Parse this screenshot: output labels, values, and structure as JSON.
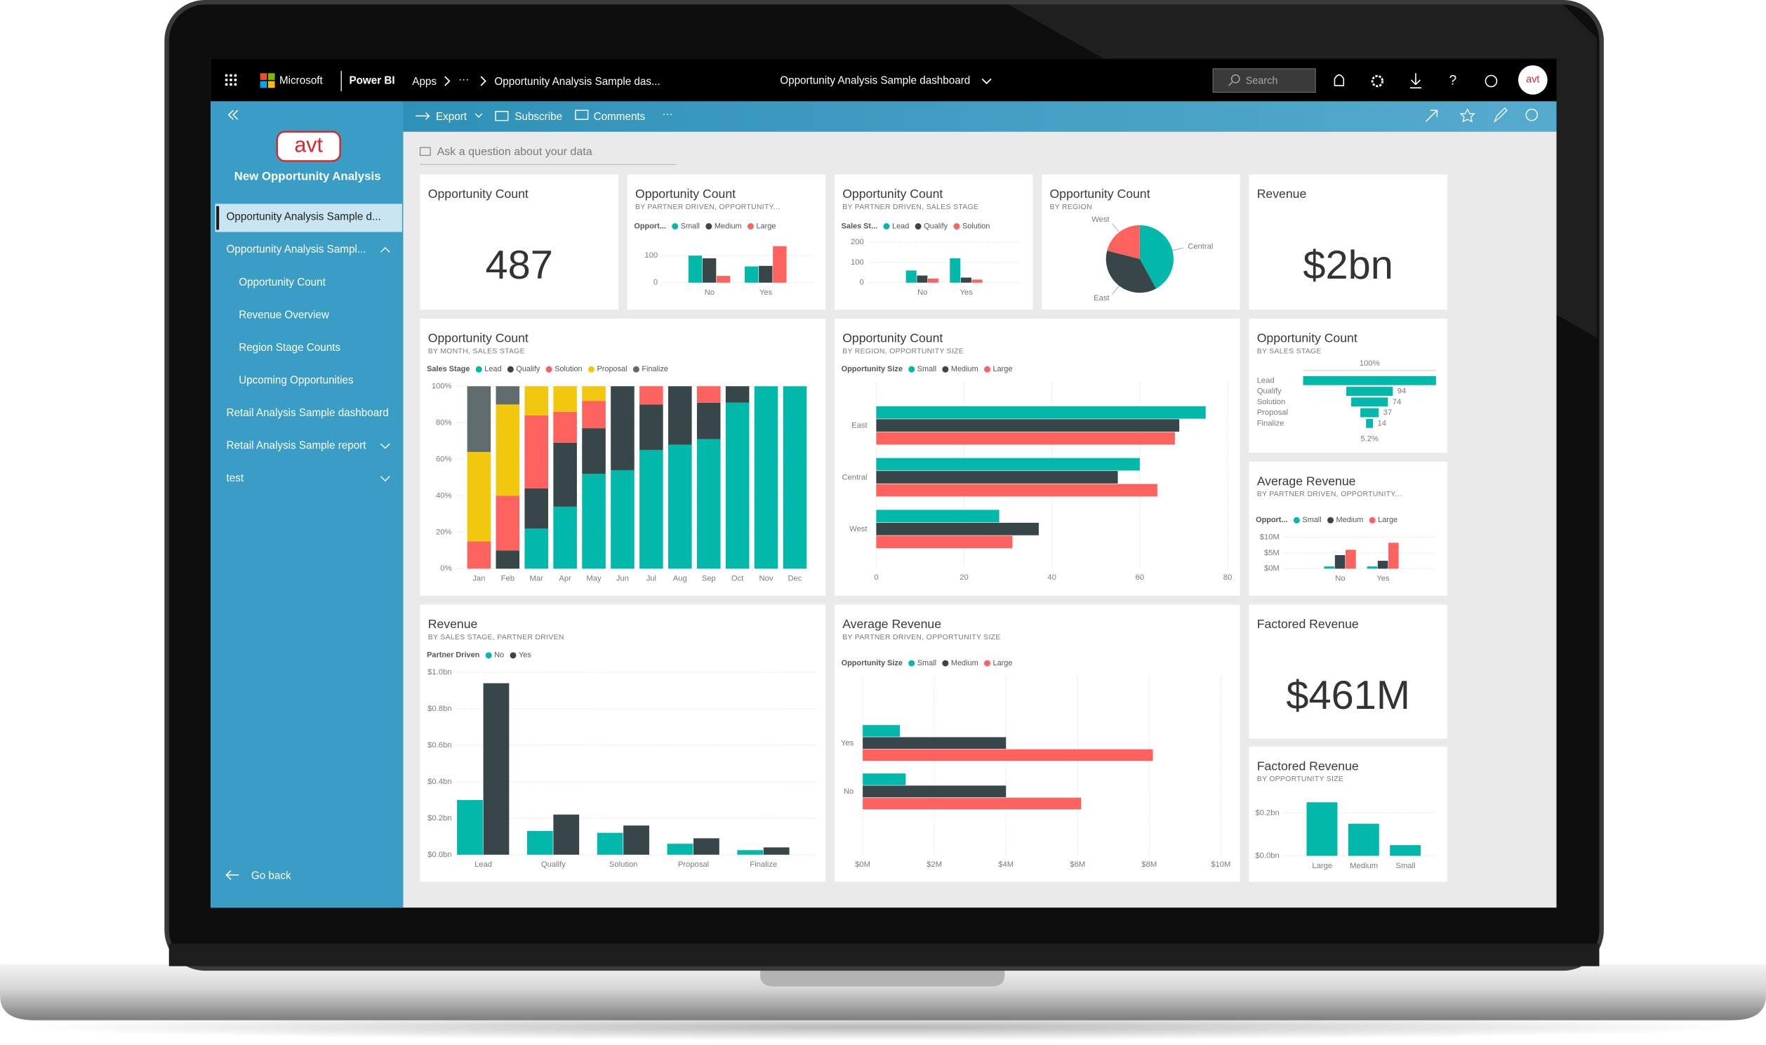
{
  "top_bar": {
    "brand": "Microsoft",
    "product": "Power BI",
    "breadcrumb": [
      "Apps",
      "···",
      "Opportunity Analysis Sample das..."
    ],
    "dashboard_title": "Opportunity Analysis Sample dashboard",
    "search": "Search",
    "help": "?",
    "avatar": "avt"
  },
  "action_bar": [
    "Export",
    "Subscribe",
    "Comments",
    "···"
  ],
  "nav": {
    "logo": "avt",
    "workspace": "New Opportunity Analysis",
    "items": [
      {
        "label": "Opportunity Analysis Sample d...",
        "selected": true
      },
      {
        "label": "Opportunity Analysis Sampl...",
        "children": [
          "Opportunity Count",
          "Revenue Overview",
          "Region Stage Counts",
          "Upcoming Opportunities"
        ]
      },
      {
        "label": "Retail Analysis Sample dashboard"
      },
      {
        "label": "Retail Analysis Sample report",
        "collapsed": true
      },
      {
        "label": "test",
        "collapsed": true
      }
    ],
    "go_back": "Go back"
  },
  "qna": "Ask a question about your data",
  "tiles": [
    {
      "type": "card",
      "title": "Opportunity Count",
      "value": "487"
    },
    {
      "type": "column",
      "title": "Opportunity Count",
      "subtitle": "BY PARTNER DRIVEN, OPPORTUNITY...",
      "legend_title": "Opport...",
      "categories": [
        "No",
        "Yes"
      ],
      "series": [
        {
          "name": "Small",
          "color": "#01b8aa",
          "values": [
            100,
            60
          ]
        },
        {
          "name": "Medium",
          "color": "#374649",
          "values": [
            90,
            62
          ]
        },
        {
          "name": "Large",
          "color": "#fd625e",
          "values": [
            25,
            135
          ]
        }
      ],
      "ylim": [
        0,
        150
      ],
      "yticks": [
        0,
        100
      ],
      "grid": true
    },
    {
      "type": "column",
      "title": "Opportunity Count",
      "subtitle": "BY PARTNER DRIVEN, SALES STAGE",
      "legend_title": "Sales St...",
      "categories": [
        "No",
        "Yes"
      ],
      "series": [
        {
          "name": "Lead",
          "color": "#01b8aa",
          "values": [
            60,
            120
          ]
        },
        {
          "name": "Qualify",
          "color": "#374649",
          "values": [
            35,
            25
          ]
        },
        {
          "name": "Solution",
          "color": "#fd625e",
          "values": [
            20,
            15
          ]
        }
      ],
      "ylim": [
        0,
        200
      ],
      "yticks": [
        0,
        100,
        200
      ],
      "grid": true
    },
    {
      "type": "pie",
      "title": "Opportunity Count",
      "subtitle": "BY REGION",
      "categories": [
        "Central",
        "East",
        "West"
      ],
      "values": [
        42,
        37,
        21
      ],
      "colors": [
        "#01b8aa",
        "#374649",
        "#fd625e"
      ]
    },
    {
      "type": "card",
      "title": "Revenue",
      "value": "$2bn"
    },
    {
      "type": "stacked100",
      "title": "Opportunity Count",
      "subtitle": "BY MONTH, SALES STAGE",
      "legend_title": "Sales Stage",
      "categories": [
        "Jan",
        "Feb",
        "Mar",
        "Apr",
        "May",
        "Jun",
        "Jul",
        "Aug",
        "Sep",
        "Oct",
        "Nov",
        "Dec"
      ],
      "series": [
        {
          "name": "Lead",
          "color": "#01b8aa",
          "values": [
            0,
            0,
            22,
            34,
            52,
            54,
            65,
            68,
            71,
            91,
            100,
            100
          ]
        },
        {
          "name": "Qualify",
          "color": "#374649",
          "values": [
            0,
            10,
            22,
            35,
            25,
            46,
            25,
            32,
            20,
            9,
            0,
            0
          ]
        },
        {
          "name": "Solution",
          "color": "#fd625e",
          "values": [
            15,
            30,
            40,
            17,
            15,
            0,
            10,
            0,
            9,
            0,
            0,
            0
          ]
        },
        {
          "name": "Proposal",
          "color": "#f2c80f",
          "values": [
            49,
            50,
            16,
            14,
            8,
            0,
            0,
            0,
            0,
            0,
            0,
            0
          ]
        },
        {
          "name": "Finalize",
          "color": "#5f6b6d",
          "values": [
            36,
            10,
            0,
            0,
            0,
            0,
            0,
            0,
            0,
            0,
            0,
            0
          ]
        }
      ],
      "ylim": [
        0,
        100
      ],
      "yticks": [
        {
          "value": 0,
          "label": "0%"
        },
        {
          "value": 20,
          "label": "20%"
        },
        {
          "value": 40,
          "label": "40%"
        },
        {
          "value": 60,
          "label": "60%"
        },
        {
          "value": 80,
          "label": "80%"
        },
        {
          "value": 100,
          "label": "100%"
        }
      ],
      "grid": true
    },
    {
      "type": "hbar",
      "title": "Opportunity Count",
      "subtitle": "BY REGION, OPPORTUNITY SIZE",
      "legend_title": "Opportunity Size",
      "categories": [
        "East",
        "Central",
        "West"
      ],
      "series": [
        {
          "name": "Small",
          "color": "#01b8aa",
          "values": [
            75,
            60,
            28
          ]
        },
        {
          "name": "Medium",
          "color": "#374649",
          "values": [
            69,
            55,
            37
          ]
        },
        {
          "name": "Large",
          "color": "#fd625e",
          "values": [
            68,
            64,
            31
          ]
        }
      ],
      "xlim": [
        0,
        80
      ],
      "xticks": [
        0,
        20,
        40,
        60,
        80
      ],
      "grid": true
    },
    {
      "type": "funnel",
      "title": "Opportunity Count",
      "subtitle": "BY SALES STAGE",
      "categories": [
        "Lead",
        "Qualify",
        "Solution",
        "Proposal",
        "Finalize"
      ],
      "values": [
        268,
        94,
        74,
        37,
        14
      ],
      "value_labels": [
        null,
        "94",
        "74",
        "37",
        "14"
      ],
      "top_label": "100%",
      "bottom_label": "5.2%",
      "color": "#01b8aa"
    },
    {
      "type": "column",
      "title": "Average Revenue",
      "subtitle": "BY PARTNER DRIVEN, OPPORTUNITY...",
      "legend_title": "Opport...",
      "categories": [
        "No",
        "Yes"
      ],
      "series": [
        {
          "name": "Small",
          "color": "#01b8aa",
          "values": [
            0.7,
            0.7
          ]
        },
        {
          "name": "Medium",
          "color": "#374649",
          "values": [
            4.3,
            2.5
          ]
        },
        {
          "name": "Large",
          "color": "#fd625e",
          "values": [
            6,
            8.2
          ]
        }
      ],
      "ylim": [
        0,
        12
      ],
      "yticks": [
        {
          "value": 0,
          "label": "$0M"
        },
        {
          "value": 5,
          "label": "$5M"
        },
        {
          "value": 10,
          "label": "$10M"
        }
      ],
      "grid": true
    },
    {
      "type": "column",
      "title": "Revenue",
      "subtitle": "BY SALES STAGE, PARTNER DRIVEN",
      "legend_title": "Partner Driven",
      "categories": [
        "Lead",
        "Qualify",
        "Solution",
        "Proposal",
        "Finalize"
      ],
      "series": [
        {
          "name": "No",
          "color": "#01b8aa",
          "values": [
            0.3,
            0.13,
            0.12,
            0.06,
            0.025
          ]
        },
        {
          "name": "Yes",
          "color": "#374649",
          "values": [
            0.94,
            0.22,
            0.16,
            0.09,
            0.04
          ]
        }
      ],
      "ylim": [
        0,
        1
      ],
      "yticks": [
        {
          "value": 0,
          "label": "$0.0bn"
        },
        {
          "value": 0.2,
          "label": "$0.2bn"
        },
        {
          "value": 0.4,
          "label": "$0.4bn"
        },
        {
          "value": 0.6,
          "label": "$0.6bn"
        },
        {
          "value": 0.8,
          "label": "$0.8bn"
        },
        {
          "value": 1,
          "label": "$1.0bn"
        }
      ],
      "grid": true
    },
    {
      "type": "hbar",
      "title": "Average Revenue",
      "subtitle": "BY PARTNER DRIVEN, OPPORTUNITY SIZE",
      "legend_title": "Opportunity Size",
      "categories": [
        "Yes",
        "No"
      ],
      "series": [
        {
          "name": "Small",
          "color": "#01b8aa",
          "values": [
            1.04,
            1.2
          ]
        },
        {
          "name": "Medium",
          "color": "#374649",
          "values": [
            4,
            4
          ]
        },
        {
          "name": "Large",
          "color": "#fd625e",
          "values": [
            8.1,
            6.1
          ]
        }
      ],
      "xlim": [
        0,
        10
      ],
      "xticks": [
        {
          "value": 0,
          "label": "$0M"
        },
        {
          "value": 2,
          "label": "$2M"
        },
        {
          "value": 4,
          "label": "$4M"
        },
        {
          "value": 6,
          "label": "$6M"
        },
        {
          "value": 8,
          "label": "$8M"
        },
        {
          "value": 10,
          "label": "$10M"
        }
      ],
      "grid": true
    },
    {
      "type": "card",
      "title": "Factored Revenue",
      "value": "$461M"
    },
    {
      "type": "column",
      "title": "Factored Revenue",
      "subtitle": "BY OPPORTUNITY SIZE",
      "categories": [
        "Large",
        "Medium",
        "Small"
      ],
      "values": [
        0.25,
        0.15,
        0.05
      ],
      "color": "#01b8aa",
      "ylim": [
        0,
        0.3
      ],
      "yticks": [
        {
          "value": 0,
          "label": "$0.0bn"
        },
        {
          "value": 0.2,
          "label": "$0.2bn"
        }
      ],
      "grid": true
    }
  ]
}
